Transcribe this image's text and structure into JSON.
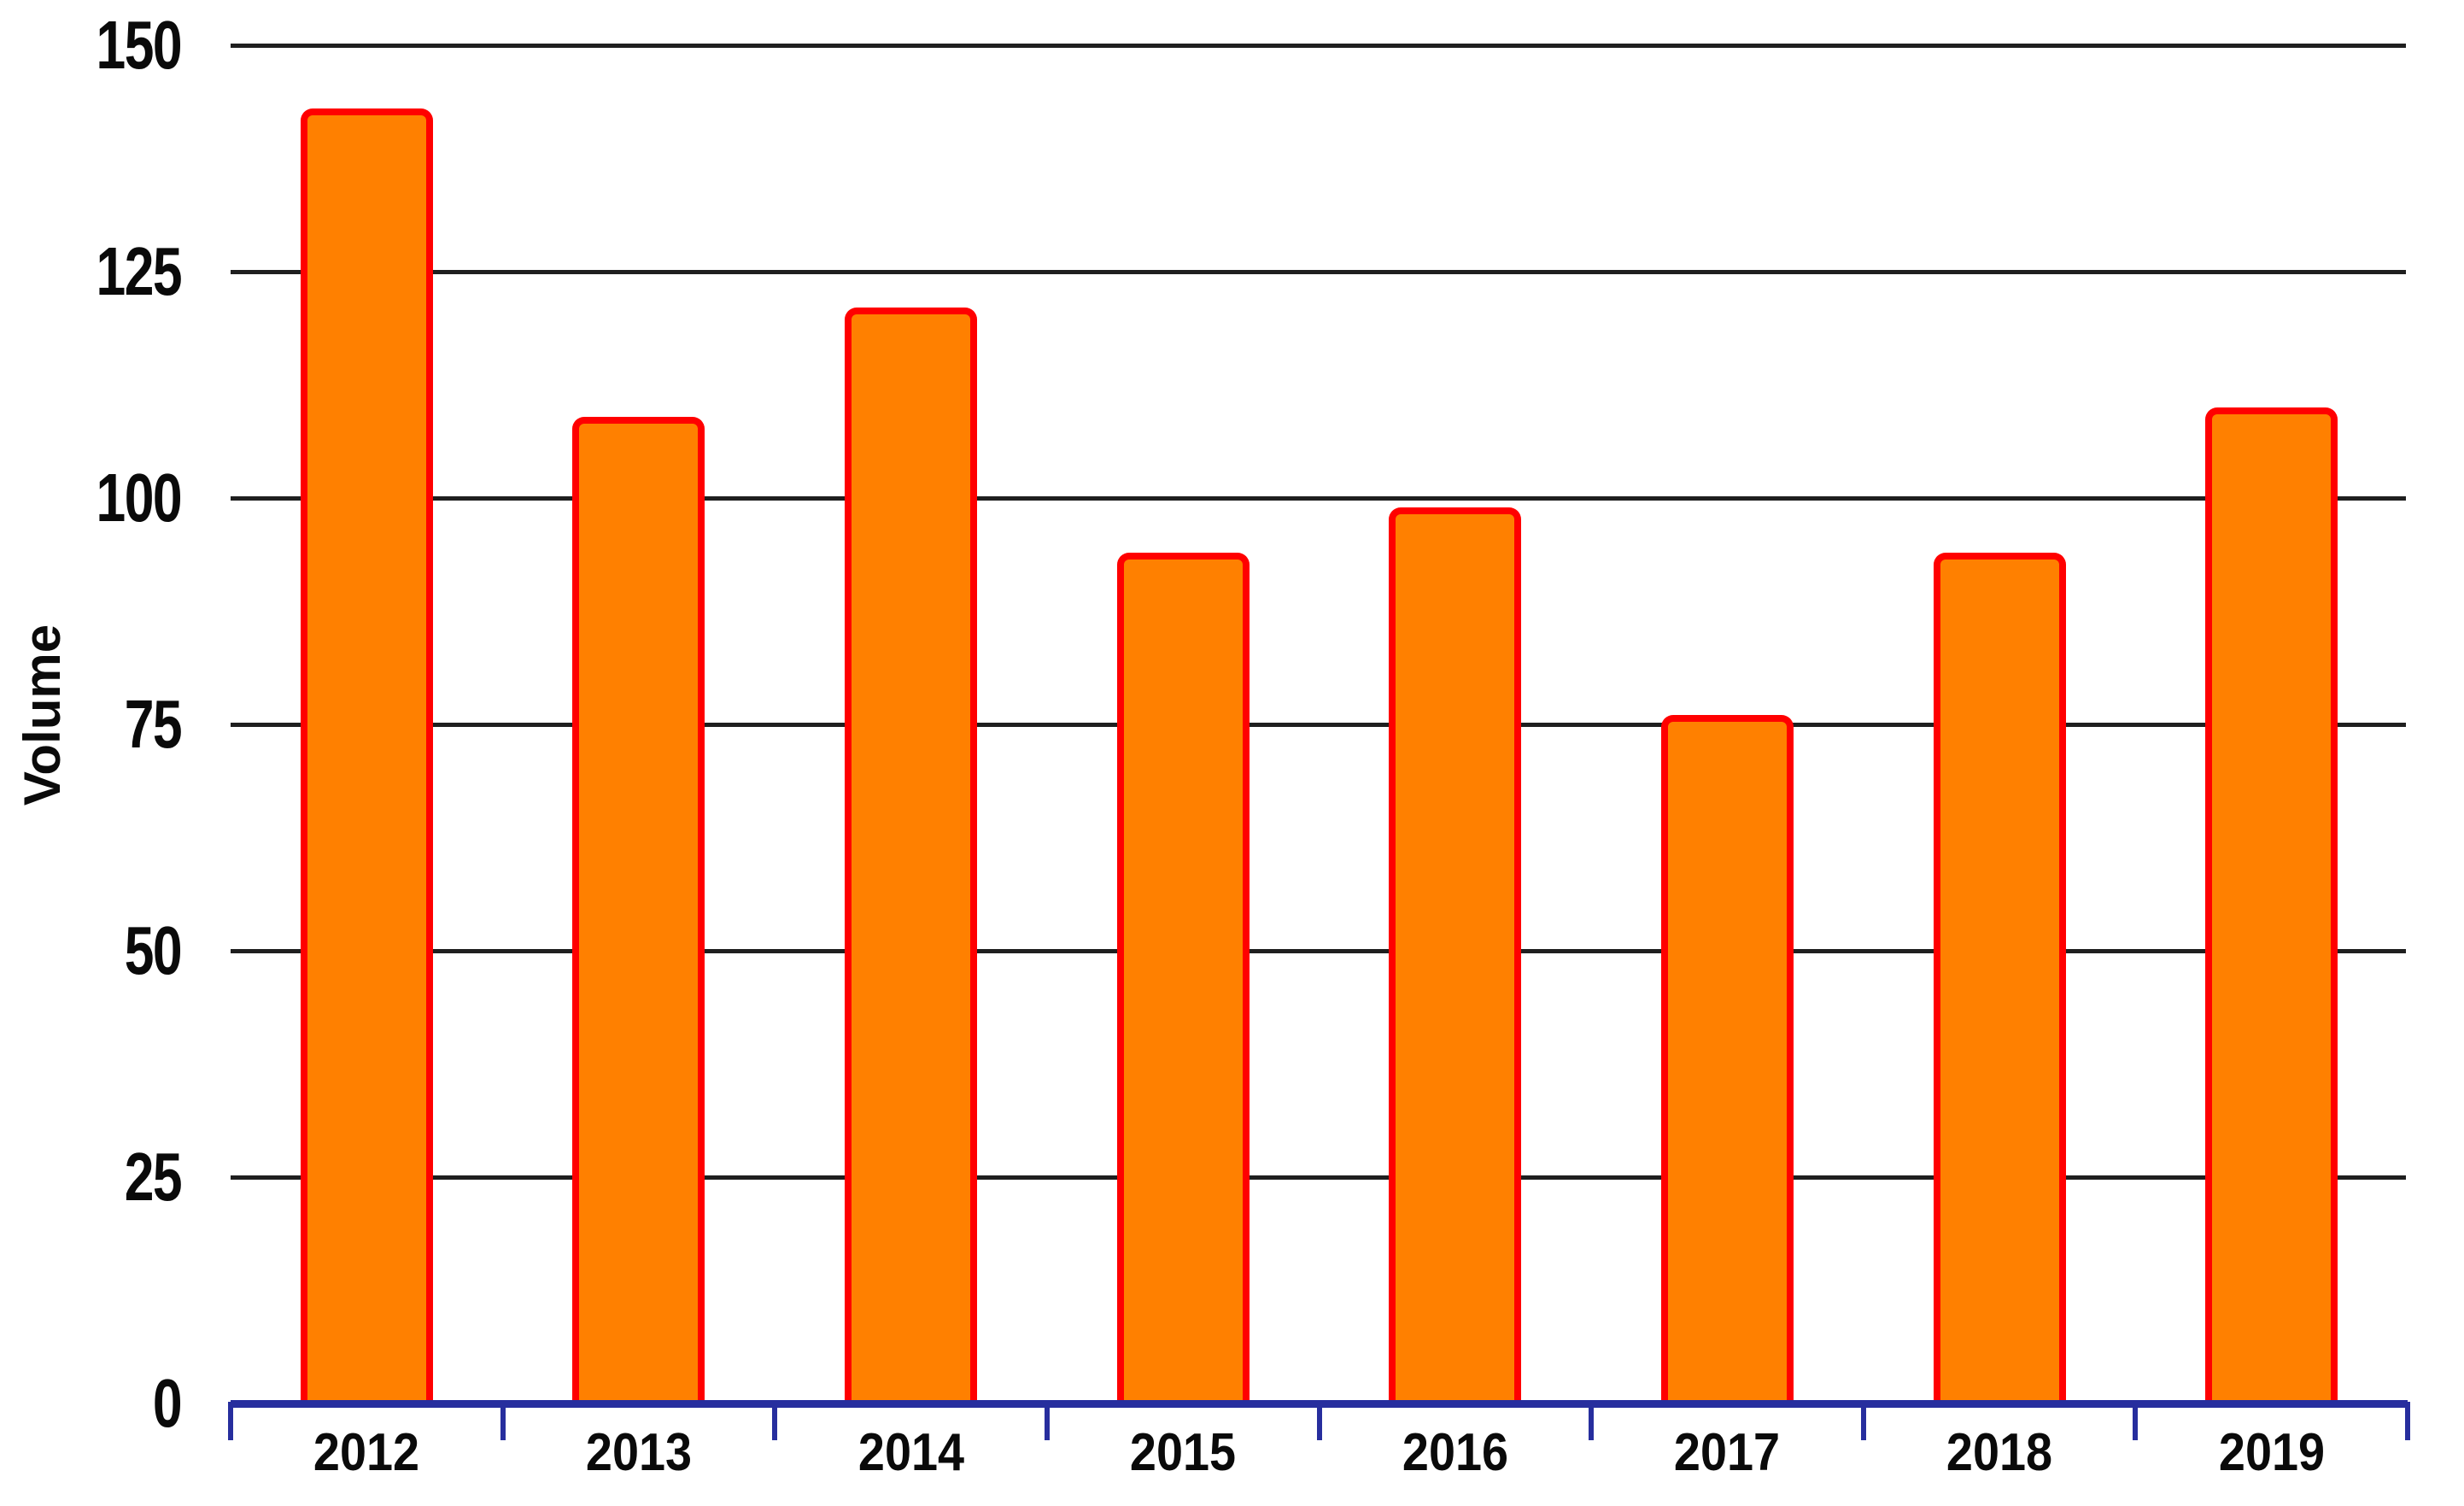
{
  "chart_data": {
    "type": "bar",
    "title": "",
    "ylabel": "Volume",
    "xlabel": "",
    "categories": [
      "2012",
      "2013",
      "2014",
      "2015",
      "2016",
      "2017",
      "2018",
      "2019"
    ],
    "values": [
      143,
      109,
      121,
      94,
      99,
      76,
      94,
      110
    ],
    "yticks": [
      0,
      25,
      50,
      75,
      100,
      125,
      150
    ],
    "ylim": [
      0,
      150
    ],
    "grid": "horizontal",
    "legend": "none",
    "colors": {
      "bar_fill": "#FF8000",
      "bar_border": "#FF0000",
      "gridline": "#1F1F1F",
      "axis": "#272E9E",
      "text": "#0A0A0A",
      "background": "#FFFFFF"
    }
  }
}
